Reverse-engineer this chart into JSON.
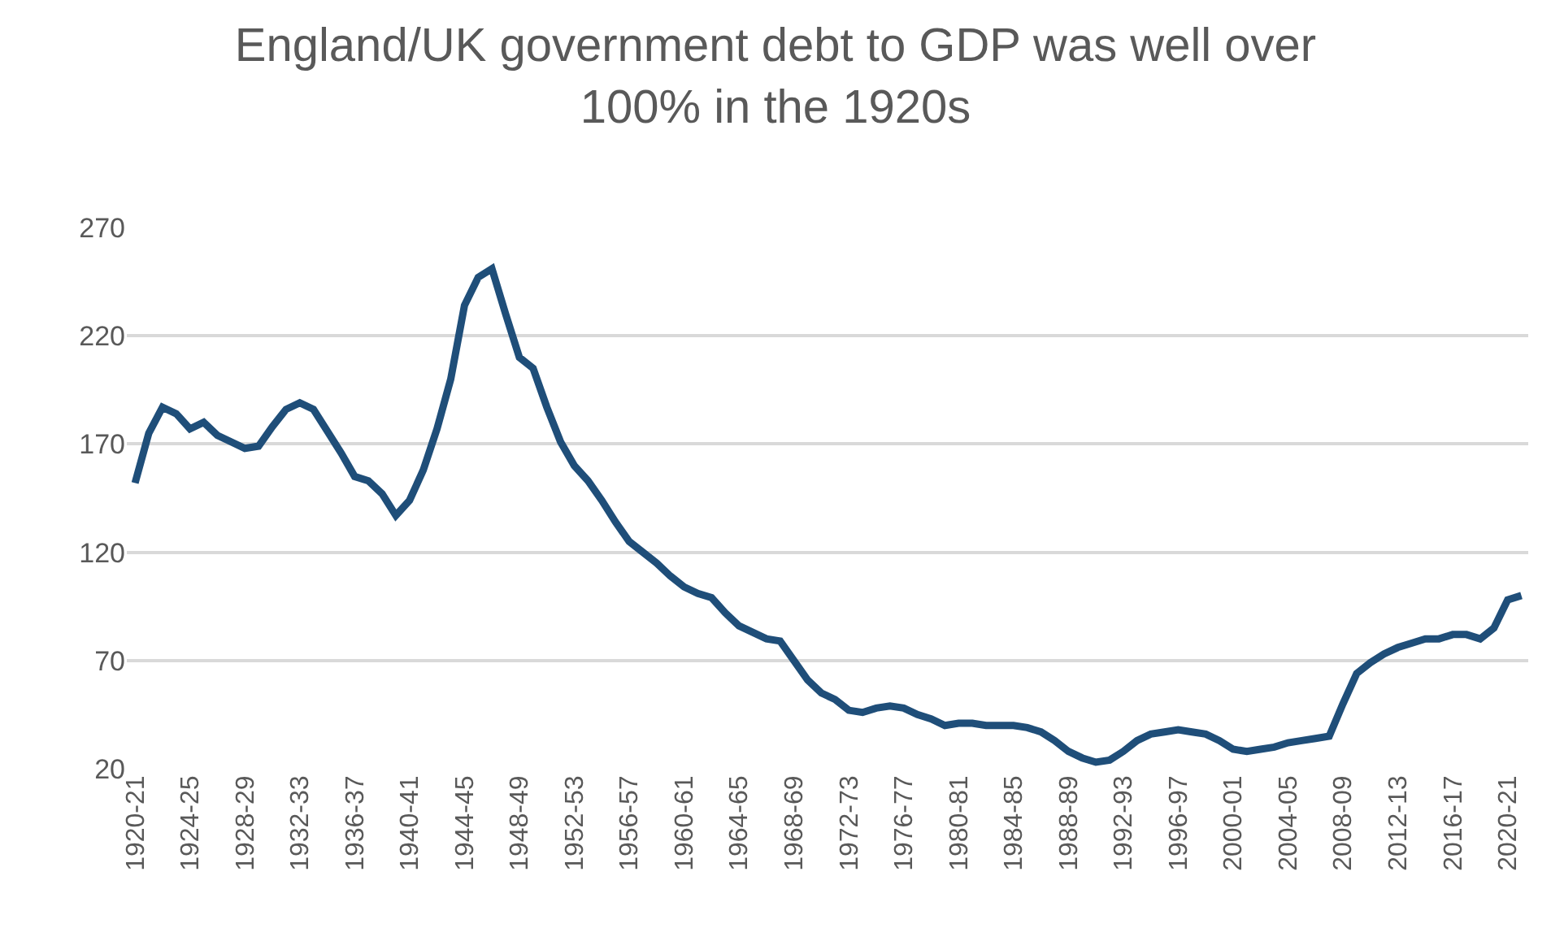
{
  "chart_data": {
    "type": "line",
    "title": "England/UK government debt to GDP was well over\n100% in the 1920s",
    "categories": [
      "1920-21",
      null,
      null,
      null,
      "1924-25",
      null,
      null,
      null,
      "1928-29",
      null,
      null,
      null,
      "1932-33",
      null,
      null,
      null,
      "1936-37",
      null,
      null,
      null,
      "1940-41",
      null,
      null,
      null,
      "1944-45",
      null,
      null,
      null,
      "1948-49",
      null,
      null,
      null,
      "1952-53",
      null,
      null,
      null,
      "1956-57",
      null,
      null,
      null,
      "1960-61",
      null,
      null,
      null,
      "1964-65",
      null,
      null,
      null,
      "1968-69",
      null,
      null,
      null,
      "1972-73",
      null,
      null,
      null,
      "1976-77",
      null,
      null,
      null,
      "1980-81",
      null,
      null,
      null,
      "1984-85",
      null,
      null,
      null,
      "1988-89",
      null,
      null,
      null,
      "1992-93",
      null,
      null,
      null,
      "1996-97",
      null,
      null,
      null,
      "2000-01",
      null,
      null,
      null,
      "2004-05",
      null,
      null,
      null,
      "2008-09",
      null,
      null,
      null,
      "2012-13",
      null,
      null,
      null,
      "2016-17",
      null,
      null,
      null,
      "2020-21",
      null
    ],
    "series": [
      {
        "color": "#1f4e79",
        "values": [
          152,
          175,
          187,
          184,
          177,
          180,
          174,
          171,
          168,
          169,
          178,
          186,
          189,
          186,
          176,
          166,
          155,
          153,
          147,
          137,
          144,
          158,
          177,
          200,
          234,
          247,
          251,
          230,
          210,
          205,
          187,
          171,
          160,
          153,
          144,
          134,
          125,
          120,
          115,
          109,
          104,
          101,
          99,
          92,
          86,
          83,
          80,
          79,
          70,
          61,
          55,
          52,
          47,
          46,
          48,
          49,
          48,
          45,
          43,
          40,
          41,
          41,
          40,
          40,
          40,
          39,
          37,
          33,
          28,
          25,
          23,
          24,
          28,
          33,
          36,
          37,
          38,
          37,
          36,
          33,
          29,
          28,
          29,
          30,
          32,
          33,
          34,
          35,
          50,
          64,
          69,
          73,
          76,
          78,
          80,
          80,
          82,
          82,
          80,
          85,
          98,
          100
        ]
      }
    ],
    "ylim": [
      20,
      270
    ],
    "yticks": [
      20,
      70,
      120,
      170,
      220,
      270
    ],
    "grid": "y",
    "marker": "none",
    "line_style": "solid"
  }
}
